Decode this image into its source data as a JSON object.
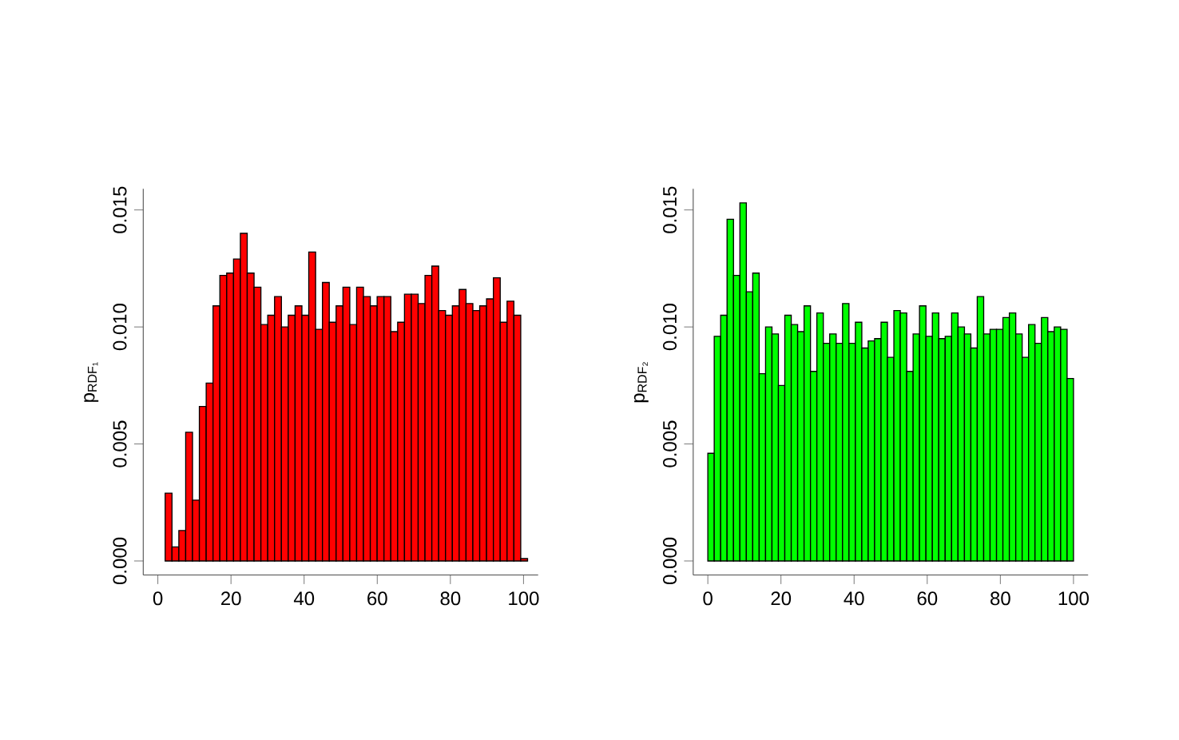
{
  "chart_data": [
    {
      "type": "histogram",
      "ylabel": "p$_{RDF₁}$",
      "color": "#ff0000",
      "bins": [
        2,
        3.87,
        5.74,
        7.61,
        9.48,
        11.35,
        13.22,
        15.09,
        16.96,
        18.83,
        20.7,
        22.57,
        24.44,
        26.31,
        28.18,
        30.05,
        31.92,
        33.79,
        35.66,
        37.53,
        39.4,
        41.27,
        43.14,
        45.01,
        46.88,
        48.75,
        50.62,
        52.49,
        54.36,
        56.23,
        58.1,
        59.97,
        61.84,
        63.71,
        65.58,
        67.45,
        69.32,
        71.19,
        73.06,
        74.93,
        76.8,
        78.67,
        80.54,
        82.41,
        84.28,
        86.15,
        88.02,
        89.89,
        91.76,
        93.63,
        95.5,
        97.37,
        99.24,
        101.11
      ],
      "values": [
        0.0029,
        0.0006,
        0.0013,
        0.0055,
        0.0026,
        0.0066,
        0.0076,
        0.0109,
        0.0122,
        0.0123,
        0.0129,
        0.014,
        0.0123,
        0.0117,
        0.0101,
        0.0105,
        0.0113,
        0.01,
        0.0105,
        0.0109,
        0.0105,
        0.0132,
        0.0099,
        0.0119,
        0.0102,
        0.0109,
        0.0117,
        0.0101,
        0.0117,
        0.0113,
        0.0109,
        0.0113,
        0.0113,
        0.0098,
        0.0102,
        0.0114,
        0.0114,
        0.011,
        0.0122,
        0.0126,
        0.0107,
        0.0105,
        0.0109,
        0.0116,
        0.011,
        0.0107,
        0.0109,
        0.0112,
        0.0121,
        0.0102,
        0.0111,
        0.0105,
        0.0001
      ],
      "xlim": [
        -4,
        104
      ],
      "ylim": [
        -0.0006,
        0.0159
      ],
      "xticks": [
        0,
        20,
        40,
        60,
        80,
        100
      ],
      "yticks": [
        {
          "value": 0,
          "label": "0.000"
        },
        {
          "value": 0.005,
          "label": "0.005"
        },
        {
          "value": 0.01,
          "label": "0.010"
        },
        {
          "value": 0.015,
          "label": "0.015"
        }
      ]
    },
    {
      "type": "histogram",
      "ylabel": "p$_{RDF₂}$",
      "color": "#00ff00",
      "bins": [
        0,
        1.75,
        3.51,
        5.26,
        7.02,
        8.77,
        10.53,
        12.28,
        14.04,
        15.79,
        17.54,
        19.3,
        21.05,
        22.81,
        24.56,
        26.32,
        28.07,
        29.82,
        31.58,
        33.33,
        35.09,
        36.84,
        38.6,
        40.35,
        42.11,
        43.86,
        45.61,
        47.37,
        49.12,
        50.88,
        52.63,
        54.39,
        56.14,
        57.89,
        59.65,
        61.4,
        63.16,
        64.91,
        66.67,
        68.42,
        70.18,
        71.93,
        73.68,
        75.44,
        77.19,
        78.95,
        80.7,
        82.46,
        84.21,
        85.96,
        87.72,
        89.47,
        91.23,
        92.98,
        94.74,
        96.49,
        98.25,
        100
      ],
      "values": [
        0.0046,
        0.0096,
        0.0105,
        0.0146,
        0.0122,
        0.0153,
        0.0115,
        0.0123,
        0.008,
        0.01,
        0.0097,
        0.0075,
        0.0105,
        0.0101,
        0.0098,
        0.0109,
        0.0081,
        0.0106,
        0.0093,
        0.0097,
        0.0093,
        0.011,
        0.0093,
        0.0102,
        0.0091,
        0.0094,
        0.0095,
        0.0102,
        0.0087,
        0.0107,
        0.0106,
        0.0081,
        0.0097,
        0.0109,
        0.0096,
        0.0106,
        0.0095,
        0.0096,
        0.0106,
        0.01,
        0.0097,
        0.0091,
        0.0113,
        0.0097,
        0.0099,
        0.0099,
        0.0104,
        0.0106,
        0.0097,
        0.0087,
        0.0101,
        0.0093,
        0.0104,
        0.0098,
        0.01,
        0.0099,
        0.0078
      ],
      "xlim": [
        -4,
        104
      ],
      "ylim": [
        -0.0006,
        0.0159
      ],
      "xticks": [
        0,
        20,
        40,
        60,
        80,
        100
      ],
      "yticks": [
        {
          "value": 0,
          "label": "0.000"
        },
        {
          "value": 0.005,
          "label": "0.005"
        },
        {
          "value": 0.01,
          "label": "0.010"
        },
        {
          "value": 0.015,
          "label": "0.015"
        }
      ]
    }
  ]
}
